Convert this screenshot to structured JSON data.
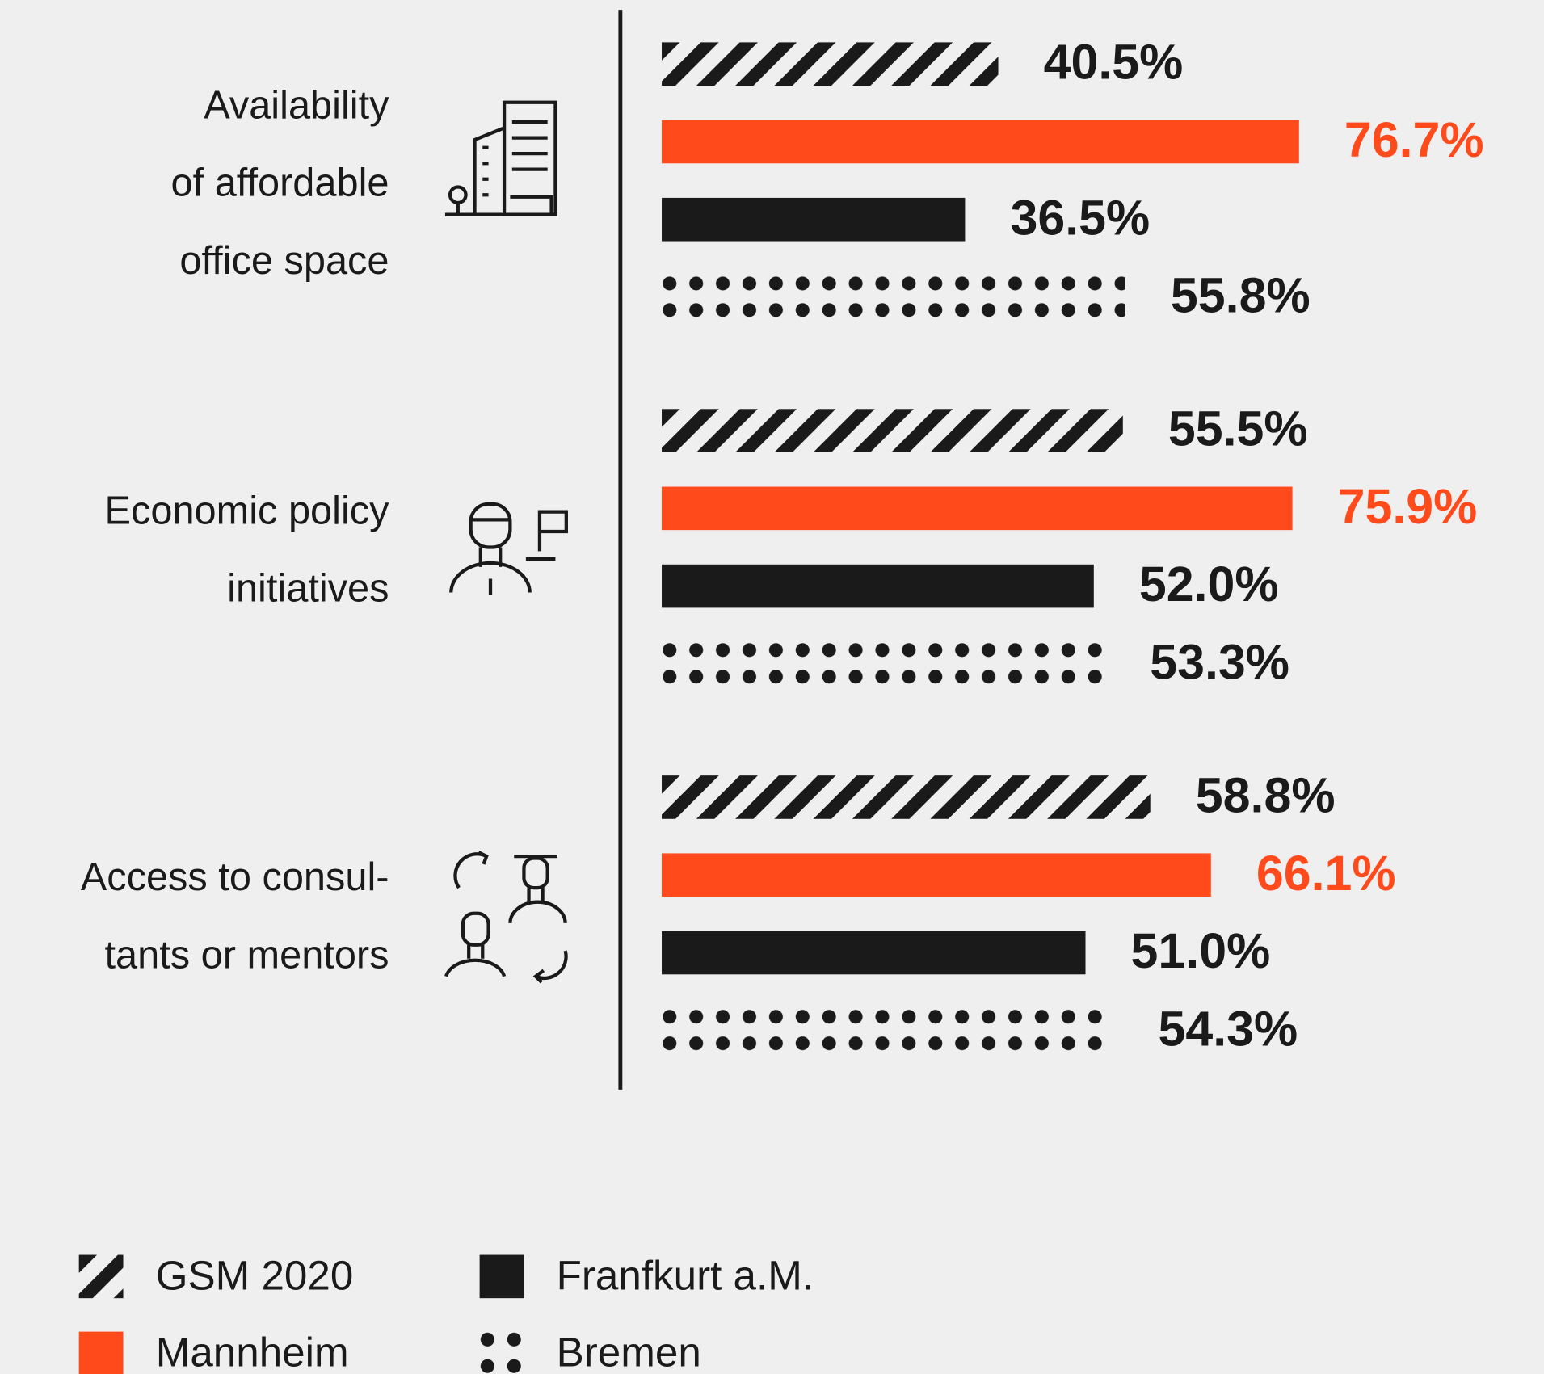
{
  "chart_data": {
    "type": "bar",
    "categories": [
      [
        "Availability",
        "of affordable",
        "office space"
      ],
      [
        "Economic policy",
        "initiatives"
      ],
      [
        "Access to consul-",
        "tants or mentors"
      ]
    ],
    "series": [
      {
        "name": "GSM 2020",
        "color": "#1a1a1a",
        "pattern": "hatch",
        "values": [
          40.5,
          55.5,
          58.8
        ],
        "value_labels": [
          "40.5%",
          "55.5%",
          "58.8%"
        ]
      },
      {
        "name": "Mannheim",
        "color": "#ff4a1c",
        "pattern": "solid",
        "values": [
          76.7,
          75.9,
          66.1
        ],
        "value_labels": [
          "76.7%",
          "75.9%",
          "66.1%"
        ]
      },
      {
        "name": "Franfkurt a.M.",
        "color": "#1a1a1a",
        "pattern": "solid",
        "values": [
          36.5,
          52.0,
          51.0
        ],
        "value_labels": [
          "36.5%",
          "52.0%",
          "51.0%"
        ]
      },
      {
        "name": "Bremen",
        "color": "#1a1a1a",
        "pattern": "dots",
        "values": [
          55.8,
          53.3,
          54.3
        ],
        "value_labels": [
          "55.8%",
          "53.3%",
          "54.3%"
        ]
      }
    ]
  }
}
